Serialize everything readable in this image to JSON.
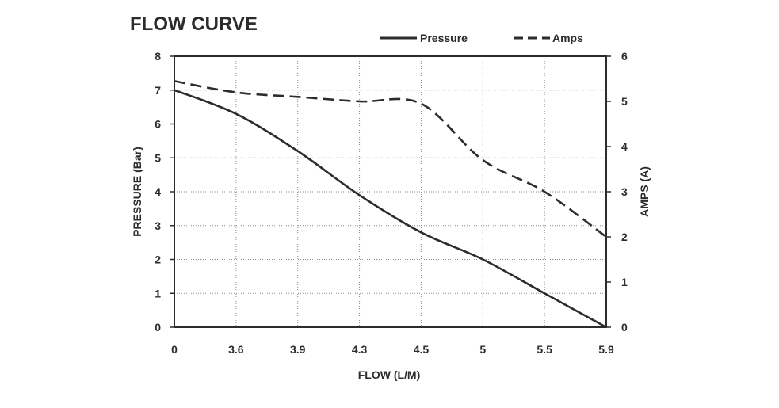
{
  "chart_data": {
    "type": "line",
    "title": "FLOW CURVE",
    "xlabel": "FLOW (L/M)",
    "ylabel": "PRESSURE (Bar)",
    "y2label": "AMPS (A)",
    "x_tick_labels": [
      "0",
      "3.6",
      "3.9",
      "4.3",
      "4.5",
      "5",
      "5.5",
      "5.9"
    ],
    "ylim": [
      0,
      8
    ],
    "y2lim": [
      0,
      6
    ],
    "y_ticks": [
      0,
      1,
      2,
      3,
      4,
      5,
      6,
      7,
      8
    ],
    "y2_ticks": [
      0,
      1,
      2,
      3,
      4,
      5,
      6
    ],
    "grid": true,
    "legend": "top",
    "series": [
      {
        "name": "Pressure",
        "axis": "left",
        "style": "solid",
        "color": "#2c2c2c",
        "values": [
          7.0,
          6.3,
          5.2,
          3.9,
          2.8,
          2.0,
          1.0,
          0.0
        ]
      },
      {
        "name": "Amps",
        "axis": "right",
        "style": "dashed",
        "color": "#2c2c2c",
        "values": [
          5.45,
          5.2,
          5.1,
          5.0,
          4.95,
          3.7,
          3.0,
          2.0
        ]
      }
    ]
  }
}
